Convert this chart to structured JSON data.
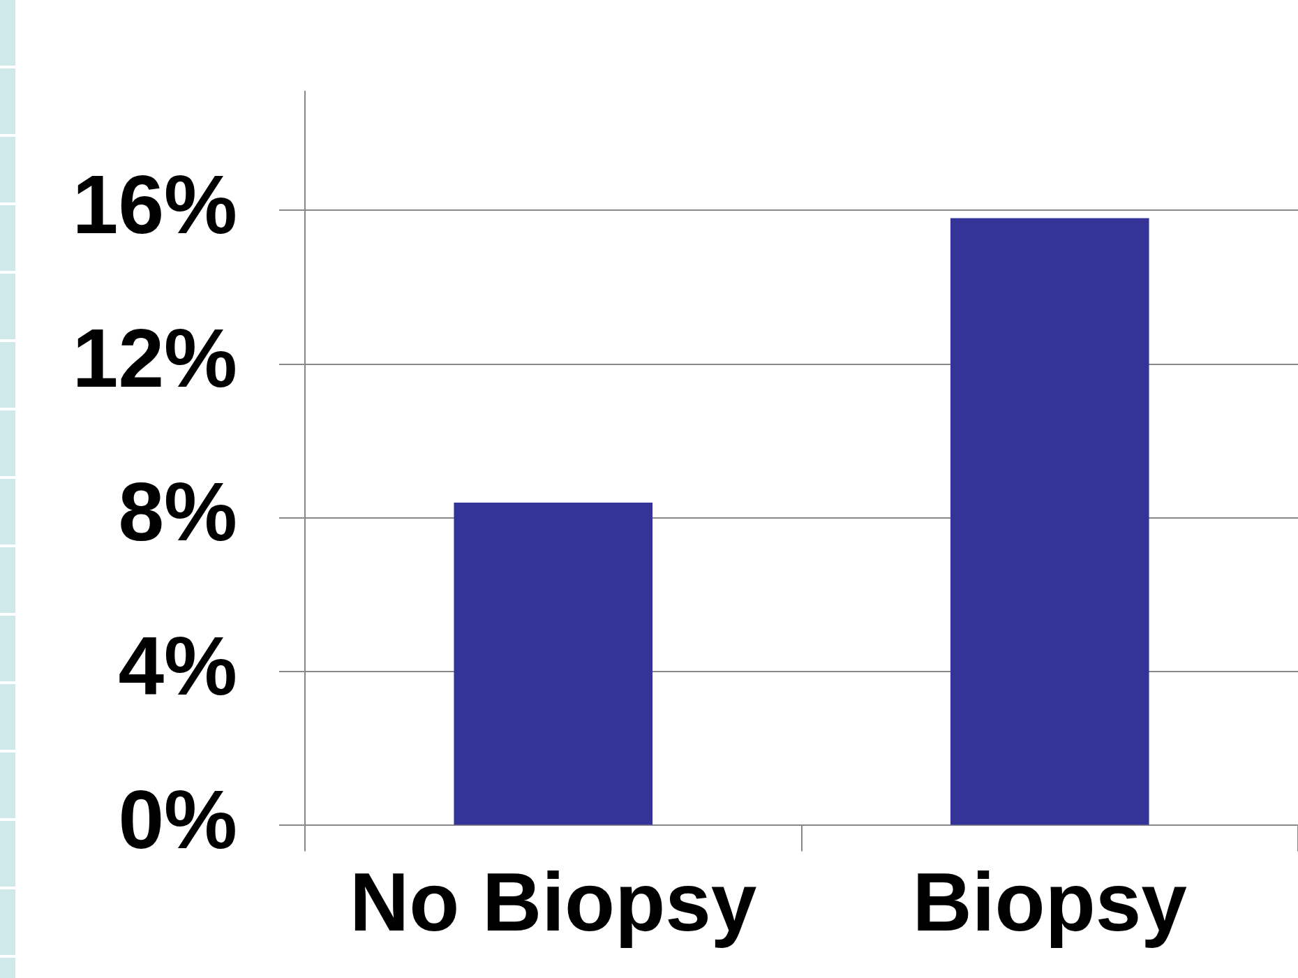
{
  "chart_data": {
    "type": "bar",
    "categories": [
      "No Biopsy",
      "Biopsy"
    ],
    "values": [
      8.4,
      15.8
    ],
    "color": "#343397",
    "ylim": [
      0,
      19.1
    ],
    "yticks": [
      {
        "value": 0,
        "label": "0%"
      },
      {
        "value": 4,
        "label": "4%"
      },
      {
        "value": 8,
        "label": "8%"
      },
      {
        "value": 12,
        "label": "12%"
      },
      {
        "value": 16,
        "label": "16%"
      }
    ],
    "grid": "y"
  }
}
